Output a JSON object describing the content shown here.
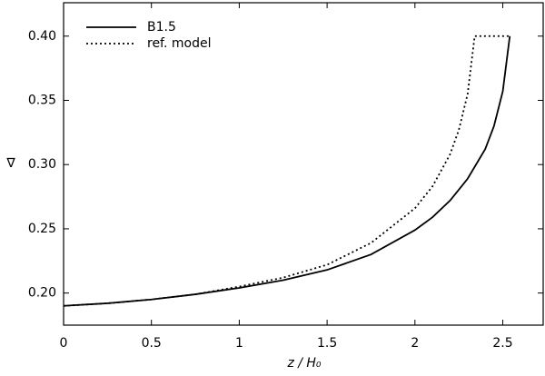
{
  "chart_data": {
    "type": "line",
    "xlabel": "z / H₀",
    "ylabel": "∇",
    "xlim": [
      0,
      2.73
    ],
    "ylim": [
      0.175,
      0.426
    ],
    "xticks": [
      0,
      0.5,
      1,
      1.5,
      2,
      2.5
    ],
    "yticks": [
      {
        "value": 0.2,
        "label": "0.20"
      },
      {
        "value": 0.25,
        "label": "0.25"
      },
      {
        "value": 0.3,
        "label": "0.30"
      },
      {
        "value": 0.35,
        "label": "0.35"
      },
      {
        "value": 0.4,
        "label": "0.40"
      }
    ],
    "legend": "upper-left",
    "series": [
      {
        "name": "B1.5",
        "color": "#000000",
        "dash": "solid",
        "x": [
          0,
          0.25,
          0.5,
          0.75,
          1.0,
          1.25,
          1.5,
          1.75,
          2.0,
          2.1,
          2.2,
          2.3,
          2.4,
          2.45,
          2.5,
          2.54
        ],
        "values": [
          0.19,
          0.192,
          0.195,
          0.199,
          0.204,
          0.21,
          0.218,
          0.23,
          0.249,
          0.259,
          0.272,
          0.289,
          0.312,
          0.33,
          0.357,
          0.4
        ]
      },
      {
        "name": "ref. model",
        "color": "#000000",
        "dash": "dotted",
        "x": [
          0,
          0.25,
          0.5,
          0.75,
          1.0,
          1.25,
          1.5,
          1.75,
          2.0,
          2.1,
          2.2,
          2.25,
          2.3,
          2.34,
          2.54
        ],
        "values": [
          0.19,
          0.192,
          0.195,
          0.199,
          0.205,
          0.212,
          0.222,
          0.239,
          0.266,
          0.283,
          0.308,
          0.327,
          0.355,
          0.4,
          0.4
        ]
      }
    ]
  }
}
